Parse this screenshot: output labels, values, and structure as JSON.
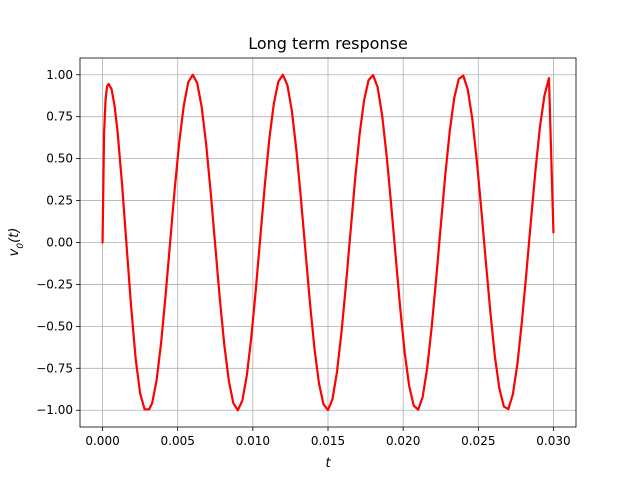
{
  "chart_data": {
    "type": "line",
    "title": "Long term response",
    "xlabel": "t",
    "ylabel": "v_0(t)",
    "xlim": [
      -0.0015,
      0.0315
    ],
    "ylim": [
      -1.1,
      1.1
    ],
    "xticks": [
      0.0,
      0.005,
      0.01,
      0.015,
      0.02,
      0.025,
      0.03
    ],
    "xtick_labels": [
      "0.000",
      "0.005",
      "0.010",
      "0.015",
      "0.020",
      "0.025",
      "0.030"
    ],
    "yticks": [
      -1.0,
      -0.75,
      -0.5,
      -0.25,
      0.0,
      0.25,
      0.5,
      0.75,
      1.0
    ],
    "ytick_labels": [
      "−1.00",
      "−0.75",
      "−0.50",
      "−0.25",
      "0.00",
      "0.25",
      "0.50",
      "0.75",
      "1.00"
    ],
    "grid": true,
    "series": [
      {
        "color": "#ff0000",
        "x": [
          0.0,
          0.0001,
          0.0002,
          0.0003,
          0.0004,
          0.0006,
          0.0008,
          0.001,
          0.0013,
          0.0016,
          0.0019,
          0.0022,
          0.0025,
          0.0028,
          0.0031,
          0.0033,
          0.0036,
          0.0039,
          0.0042,
          0.0045,
          0.0048,
          0.0051,
          0.0054,
          0.0057,
          0.006,
          0.0063,
          0.0066,
          0.0069,
          0.0072,
          0.0075,
          0.0078,
          0.0081,
          0.0084,
          0.0087,
          0.009,
          0.0093,
          0.0096,
          0.0099,
          0.0102,
          0.0105,
          0.0108,
          0.0111,
          0.0114,
          0.0117,
          0.012,
          0.0123,
          0.0126,
          0.0129,
          0.0132,
          0.0135,
          0.0138,
          0.0141,
          0.0144,
          0.0147,
          0.015,
          0.0153,
          0.0156,
          0.0159,
          0.0162,
          0.0165,
          0.0168,
          0.0171,
          0.0174,
          0.0177,
          0.018,
          0.0183,
          0.0186,
          0.0189,
          0.0192,
          0.0195,
          0.0198,
          0.0201,
          0.0204,
          0.0207,
          0.021,
          0.0213,
          0.0216,
          0.0219,
          0.0222,
          0.0225,
          0.0228,
          0.0231,
          0.0234,
          0.0237,
          0.024,
          0.0243,
          0.0246,
          0.0249,
          0.0252,
          0.0255,
          0.0258,
          0.0261,
          0.0264,
          0.0267,
          0.027,
          0.0273,
          0.0276,
          0.0279,
          0.0282,
          0.0285,
          0.0288,
          0.0291,
          0.0294,
          0.0297,
          0.03
        ],
        "y": [
          0.0,
          0.65,
          0.85,
          0.93,
          0.945,
          0.915,
          0.815,
          0.66,
          0.345,
          -0.02,
          -0.38,
          -0.69,
          -0.9,
          -0.995,
          -0.995,
          -0.958,
          -0.82,
          -0.595,
          -0.31,
          0.005,
          0.318,
          0.595,
          0.813,
          0.955,
          1.0,
          0.95,
          0.805,
          0.58,
          0.295,
          -0.02,
          -0.333,
          -0.61,
          -0.823,
          -0.958,
          -1.0,
          -0.943,
          -0.792,
          -0.563,
          -0.278,
          0.035,
          0.345,
          0.62,
          0.83,
          0.96,
          1.0,
          0.938,
          0.782,
          0.548,
          0.26,
          -0.05,
          -0.36,
          -0.633,
          -0.84,
          -0.965,
          -0.999,
          -0.933,
          -0.77,
          -0.533,
          -0.245,
          0.065,
          0.372,
          0.643,
          0.847,
          0.968,
          0.998,
          0.927,
          0.76,
          0.518,
          0.228,
          -0.082,
          -0.387,
          -0.655,
          -0.855,
          -0.972,
          -0.997,
          -0.92,
          -0.748,
          -0.503,
          -0.213,
          0.097,
          0.4,
          0.665,
          0.862,
          0.975,
          0.995,
          0.912,
          0.737,
          0.488,
          0.197,
          -0.113,
          -0.413,
          -0.677,
          -0.87,
          -0.978,
          -0.993,
          -0.905,
          -0.725,
          -0.472,
          -0.18,
          0.128,
          0.427,
          0.688,
          0.876,
          0.98,
          0.06
        ]
      }
    ]
  }
}
